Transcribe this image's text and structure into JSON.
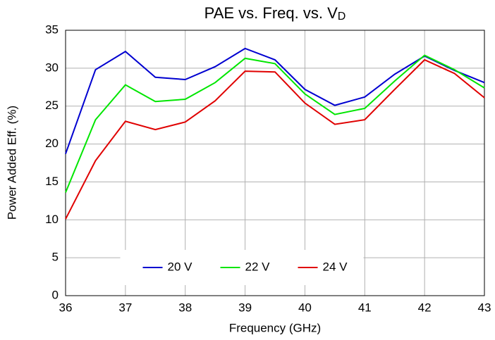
{
  "chart_data": {
    "type": "line",
    "title": "PAE vs. Freq. vs. V",
    "title_subscript": "D",
    "x_label": "Frequency (GHz)",
    "y_label": "Power Added Eff. (%)",
    "x": [
      36,
      36.5,
      37,
      37.5,
      38,
      38.5,
      39,
      39.5,
      40,
      40.5,
      41,
      41.5,
      42,
      42.5,
      43
    ],
    "series": [
      {
        "name": "20 V",
        "color": "#0000d0",
        "values": [
          18.7,
          29.8,
          32.2,
          28.8,
          28.5,
          30.2,
          32.6,
          31.1,
          27.2,
          25.1,
          26.2,
          29.2,
          31.6,
          29.7,
          28.1
        ]
      },
      {
        "name": "22 V",
        "color": "#00e600",
        "values": [
          13.6,
          23.2,
          27.8,
          25.6,
          25.9,
          28.1,
          31.3,
          30.6,
          26.6,
          23.9,
          24.7,
          28.3,
          31.7,
          29.8,
          27.4
        ]
      },
      {
        "name": "24 V",
        "color": "#e00000",
        "values": [
          10.1,
          17.8,
          23.0,
          21.9,
          22.9,
          25.7,
          29.6,
          29.5,
          25.4,
          22.6,
          23.2,
          27.2,
          31.1,
          29.3,
          26.1
        ]
      }
    ],
    "xlim": [
      36,
      43
    ],
    "xticks": [
      36,
      37,
      38,
      39,
      40,
      41,
      42,
      43
    ],
    "ylim": [
      0,
      35
    ],
    "yticks": [
      0,
      5,
      10,
      15,
      20,
      25,
      30,
      35
    ],
    "grid": true,
    "legend": "lower center"
  }
}
